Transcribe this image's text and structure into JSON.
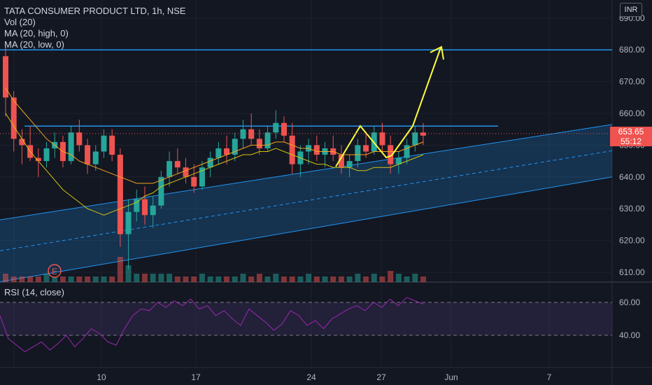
{
  "header": {
    "symbol_line": "TATA CONSUMER PRODUCT LTD, 1h, NSE",
    "indicators": [
      "Vol (20)",
      "MA (20, high, 0)",
      "MA (20, low, 0)"
    ],
    "currency": "INR"
  },
  "price_panel": {
    "last_price": "653.65",
    "countdown": "55:12",
    "earnings_marker": "E"
  },
  "rsi_panel": {
    "label": "RSI (14, close)"
  },
  "colors": {
    "background": "#131722",
    "up": "#26a69a",
    "down": "#ef5350",
    "channel_line": "#2196f3",
    "ma_high": "#f7a21b",
    "ma_low": "#d4c20f",
    "pattern": "#ffff3b",
    "rsi_line": "#9c27b0",
    "rsi_band": "#7e57c2"
  },
  "chart_data": [
    {
      "type": "candlestick",
      "yaxis_ticks": [
        610,
        620,
        630,
        640,
        650,
        660,
        670,
        680,
        690
      ],
      "ylim": [
        605,
        692
      ],
      "xaxis_ticks": [
        "10",
        "17",
        "24",
        "27",
        "Jun",
        "7"
      ],
      "horizontal_levels": [
        680,
        656
      ],
      "last_price": 653.65,
      "ohlc": [
        [
          678,
          681,
          659,
          665
        ],
        [
          665,
          667,
          648,
          652
        ],
        [
          652,
          655,
          644,
          650
        ],
        [
          650,
          656,
          645,
          646
        ],
        [
          646,
          649,
          640,
          645
        ],
        [
          645,
          651,
          643,
          649
        ],
        [
          649,
          654,
          646,
          651
        ],
        [
          651,
          653,
          643,
          645
        ],
        [
          645,
          656,
          644,
          654
        ],
        [
          654,
          658,
          648,
          650
        ],
        [
          650,
          652,
          641,
          644
        ],
        [
          644,
          650,
          642,
          648
        ],
        [
          648,
          655,
          646,
          653
        ],
        [
          653,
          655,
          645,
          647
        ],
        [
          647,
          649,
          618,
          622
        ],
        [
          622,
          633,
          611,
          629
        ],
        [
          629,
          636,
          626,
          633
        ],
        [
          633,
          637,
          625,
          628
        ],
        [
          628,
          634,
          624,
          631
        ],
        [
          631,
          642,
          630,
          640
        ],
        [
          640,
          648,
          637,
          645
        ],
        [
          645,
          649,
          641,
          643
        ],
        [
          643,
          646,
          638,
          640
        ],
        [
          640,
          644,
          635,
          637
        ],
        [
          637,
          645,
          636,
          643
        ],
        [
          643,
          648,
          640,
          646
        ],
        [
          646,
          651,
          644,
          649
        ],
        [
          649,
          653,
          644,
          647
        ],
        [
          647,
          654,
          645,
          652
        ],
        [
          652,
          658,
          649,
          655
        ],
        [
          655,
          660,
          650,
          652
        ],
        [
          652,
          655,
          647,
          649
        ],
        [
          649,
          656,
          648,
          654
        ],
        [
          654,
          661,
          652,
          657
        ],
        [
          657,
          659,
          651,
          653
        ],
        [
          653,
          657,
          641,
          644
        ],
        [
          644,
          650,
          640,
          648
        ],
        [
          648,
          652,
          644,
          650
        ],
        [
          650,
          653,
          645,
          647
        ],
        [
          647,
          651,
          643,
          649
        ],
        [
          649,
          653,
          645,
          647
        ],
        [
          647,
          650,
          641,
          643
        ],
        [
          643,
          647,
          640,
          645
        ],
        [
          645,
          652,
          643,
          650
        ],
        [
          650,
          654,
          646,
          648
        ],
        [
          648,
          656,
          647,
          654
        ],
        [
          654,
          657,
          648,
          650
        ],
        [
          650,
          653,
          641,
          644
        ],
        [
          644,
          648,
          641,
          646
        ],
        [
          646,
          652,
          644,
          650
        ],
        [
          650,
          656,
          648,
          654
        ],
        [
          654,
          657,
          650,
          653
        ]
      ],
      "ma_high": [
        668,
        664,
        661,
        658,
        655,
        652,
        650,
        648,
        647,
        645,
        644,
        643,
        642,
        641,
        640,
        639,
        638,
        638,
        638,
        639,
        640,
        641,
        642,
        643,
        644,
        645,
        646,
        647,
        648,
        649,
        650,
        650,
        650,
        651,
        651,
        650,
        649,
        649,
        648,
        648,
        648,
        647,
        647,
        647,
        647,
        648,
        648,
        648,
        648,
        649,
        650,
        651
      ],
      "ma_low": [
        660,
        656,
        652,
        648,
        645,
        642,
        639,
        636,
        634,
        632,
        630,
        629,
        628,
        629,
        630,
        631,
        632,
        634,
        635,
        637,
        638,
        639,
        640,
        641,
        642,
        643,
        644,
        645,
        646,
        647,
        647,
        648,
        648,
        649,
        648,
        647,
        646,
        645,
        644,
        644,
        643,
        643,
        643,
        642,
        642,
        643,
        643,
        643,
        644,
        645,
        646,
        647
      ],
      "volume": [
        3,
        2,
        2,
        2,
        2,
        3,
        2,
        2,
        2,
        2,
        2,
        2,
        2,
        2,
        9,
        6,
        3,
        3,
        3,
        3,
        3,
        2,
        2,
        2,
        3,
        2,
        2,
        2,
        2,
        3,
        2,
        3,
        2,
        3,
        2,
        2,
        2,
        3,
        2,
        2,
        2,
        2,
        2,
        3,
        2,
        3,
        2,
        4,
        3,
        2,
        3,
        2
      ]
    },
    {
      "type": "line",
      "title": "RSI (14, close)",
      "yaxis_ticks": [
        40,
        60
      ],
      "ylim": [
        23,
        66
      ],
      "band": [
        40,
        60
      ],
      "values": [
        52,
        38,
        34,
        30,
        33,
        36,
        31,
        35,
        40,
        33,
        38,
        44,
        41,
        36,
        34,
        44,
        52,
        56,
        55,
        60,
        57,
        61,
        58,
        62,
        56,
        58,
        52,
        55,
        50,
        46,
        56,
        52,
        48,
        43,
        47,
        55,
        52,
        46,
        49,
        44,
        50,
        53,
        56,
        58,
        55,
        60,
        57,
        62,
        58,
        63,
        61,
        59
      ]
    }
  ]
}
